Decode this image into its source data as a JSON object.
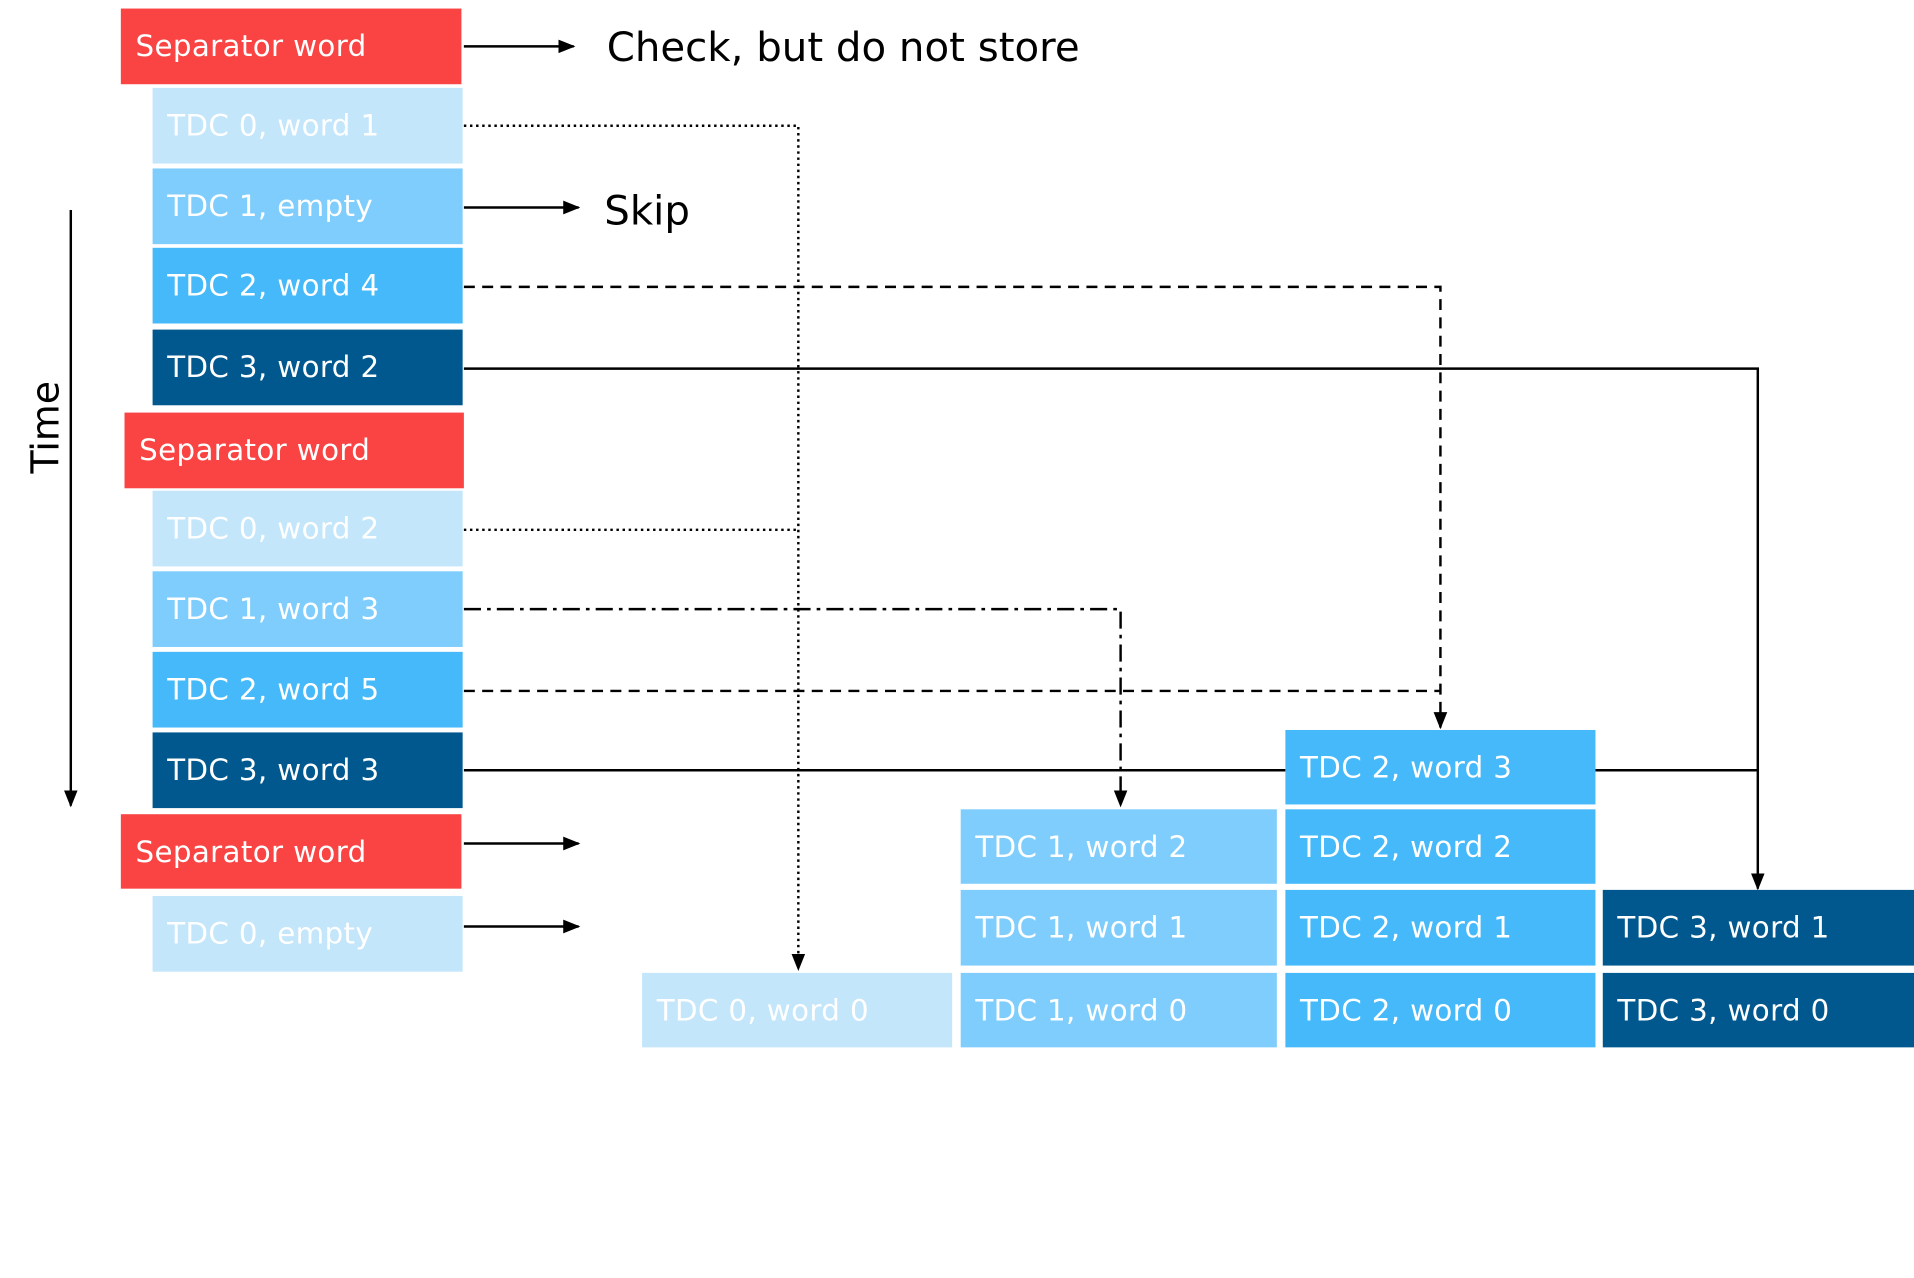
{
  "stream": [
    {
      "label": "Separator word",
      "kind": "separator"
    },
    {
      "label": "TDC 0, word 1",
      "kind": "tdc0"
    },
    {
      "label": "TDC 1, empty",
      "kind": "tdc1"
    },
    {
      "label": "TDC 2, word 4",
      "kind": "tdc2"
    },
    {
      "label": "TDC 3, word 2",
      "kind": "tdc3"
    },
    {
      "label": "Separator word",
      "kind": "separator"
    },
    {
      "label": "TDC 0, word 2",
      "kind": "tdc0"
    },
    {
      "label": "TDC 1, word 3",
      "kind": "tdc1"
    },
    {
      "label": "TDC 2, word 5",
      "kind": "tdc2"
    },
    {
      "label": "TDC 3, word 3",
      "kind": "tdc3"
    },
    {
      "label": "Separator word",
      "kind": "separator"
    },
    {
      "label": "TDC 0, empty",
      "kind": "tdc0"
    }
  ],
  "notes": {
    "check": "Check, but do not store",
    "skip": "Skip"
  },
  "axis_label": "Time",
  "storage": {
    "tdc0": [
      "TDC 0, word 0"
    ],
    "tdc1": [
      "TDC 1, word 2",
      "TDC 1, word 1",
      "TDC 1, word 0"
    ],
    "tdc2": [
      "TDC 2, word 3",
      "TDC 2, word 2",
      "TDC 2, word 1",
      "TDC 2, word 0"
    ],
    "tdc3": [
      "TDC 3, word 1",
      "TDC 3, word 0"
    ]
  },
  "colors": {
    "separator": "#fa4444",
    "tdc0": "#c3e6fb",
    "tdc1": "#7fcdfc",
    "tdc2": "#45b9f9",
    "tdc3": "#00588e"
  }
}
